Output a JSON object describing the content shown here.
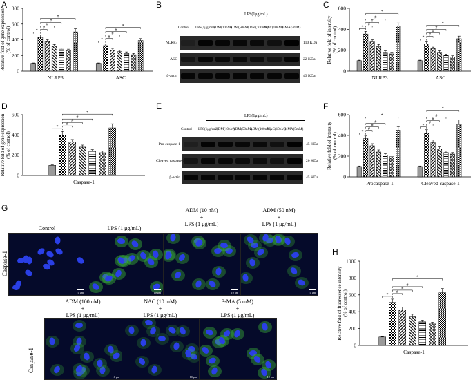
{
  "panels": {
    "A": "A",
    "B": "B",
    "C": "C",
    "D": "D",
    "E": "E",
    "F": "F",
    "G": "G",
    "H": "H"
  },
  "colors": {
    "bar_fill": "#d9d9d9",
    "bar_edge": "#000000",
    "nucleus": "#1a2fd6",
    "green": "#3fbf3a",
    "fluor_bg": "#050a2a"
  },
  "chart_data": [
    {
      "panel": "A",
      "type": "bar",
      "ylabel": "Relative fold of gene expression (% of control)",
      "ylim": [
        0,
        800
      ],
      "yticks": [
        0,
        200,
        400,
        600,
        800
      ],
      "categories": [
        "NLRP3",
        "ASC"
      ],
      "values": [
        [
          100,
          430,
          375,
          320,
          280,
          265,
          500
        ],
        [
          100,
          325,
          270,
          250,
          230,
          210,
          390
        ]
      ],
      "errors": [
        [
          5,
          30,
          25,
          20,
          15,
          15,
          40
        ],
        [
          5,
          20,
          20,
          15,
          15,
          15,
          25
        ]
      ],
      "sig_marks": [
        [
          "*",
          "#",
          "#",
          "#",
          "#"
        ],
        [
          "*",
          "#",
          "#",
          "#",
          "*"
        ]
      ]
    },
    {
      "panel": "C",
      "type": "bar",
      "ylabel": "Relative fold of intensity (% of control)",
      "ylim": [
        0,
        600
      ],
      "yticks": [
        0,
        200,
        400,
        600
      ],
      "categories": [
        "NLRP3",
        "ASC"
      ],
      "values": [
        [
          100,
          355,
          280,
          235,
          180,
          165,
          430
        ],
        [
          100,
          260,
          215,
          180,
          150,
          135,
          310
        ]
      ],
      "errors": [
        [
          5,
          25,
          20,
          20,
          15,
          15,
          30
        ],
        [
          5,
          20,
          15,
          15,
          12,
          12,
          25
        ]
      ],
      "sig_marks": [
        [
          "*",
          "#",
          "#",
          "#",
          "*"
        ],
        [
          "*",
          "#",
          "#",
          "#",
          "*"
        ]
      ]
    },
    {
      "panel": "D",
      "type": "bar",
      "ylabel": "Relative fold of gene expression (% of control)",
      "ylim": [
        0,
        600
      ],
      "yticks": [
        0,
        200,
        400,
        600
      ],
      "categories": [
        "Caspase-1"
      ],
      "values": [
        [
          100,
          400,
          330,
          280,
          240,
          225,
          470
        ]
      ],
      "errors": [
        [
          5,
          35,
          25,
          20,
          15,
          15,
          40
        ]
      ],
      "sig_marks": [
        [
          "*",
          "#",
          "#",
          "#",
          "*"
        ]
      ]
    },
    {
      "panel": "F",
      "type": "bar",
      "ylabel": "Relative fold of intensity (% of control)",
      "ylim": [
        0,
        600
      ],
      "yticks": [
        0,
        200,
        400,
        600
      ],
      "categories": [
        "Procaspase-1",
        "Cleaved caspase-1"
      ],
      "values": [
        [
          100,
          370,
          300,
          240,
          210,
          195,
          450
        ],
        [
          100,
          420,
          330,
          270,
          235,
          220,
          510
        ]
      ],
      "errors": [
        [
          5,
          25,
          20,
          20,
          15,
          15,
          35
        ],
        [
          5,
          35,
          25,
          20,
          15,
          15,
          40
        ]
      ],
      "sig_marks": [
        [
          "*",
          "#",
          "#",
          "#",
          "*"
        ],
        [
          "*",
          "#",
          "#",
          "#",
          "*"
        ]
      ]
    },
    {
      "panel": "H",
      "type": "bar",
      "ylabel": "Relative fold of fluorescence intensity (% of control)",
      "ylim": [
        0,
        1000
      ],
      "yticks": [
        0,
        200,
        400,
        600,
        800,
        1000
      ],
      "categories": [
        "Caspase-1"
      ],
      "values": [
        [
          100,
          510,
          420,
          340,
          280,
          255,
          625
        ]
      ],
      "errors": [
        [
          5,
          40,
          35,
          30,
          20,
          20,
          50
        ]
      ],
      "sig_marks": [
        [
          "*",
          "#",
          "#",
          "#",
          "*"
        ]
      ]
    }
  ],
  "blotB": {
    "header": "LPS(1μg/mL)",
    "conditions": [
      "Control",
      "LPS(1μg/mL)",
      "ADM(10nM)",
      "ADM(50nM)",
      "ADM(100nM)",
      "NAC(10nM)",
      "3-MA(5mM)"
    ],
    "rows": [
      {
        "label": "NLRP3",
        "size": "110 KDa"
      },
      {
        "label": "ASC",
        "size": "22 KDa"
      },
      {
        "label": "β-actin",
        "size": "43 KDa"
      }
    ]
  },
  "blotE": {
    "header": "LPS(1μg/mL)",
    "conditions": [
      "Control",
      "LPS(1μg/mL)",
      "ADM(10nM)",
      "ADM(50nM)",
      "ADM(100nM)",
      "NAC(10nM)",
      "3-MA(5mM)"
    ],
    "rows": [
      {
        "label": "Pro-caspase-1",
        "size": "45 KDa"
      },
      {
        "label": "Cleaved caspase-1",
        "size": "20 KDa"
      },
      {
        "label": "β-actin",
        "size": "45 KDa"
      }
    ]
  },
  "panelG": {
    "row_label": "Caspase-1",
    "top_captions": [
      "Control",
      "LPS (1 μg/mL)",
      "ADM (10 nM)\n+\nLPS (1 μg/mL)",
      "ADM (50 nM)\n+\nLPS (1 μg/mL)"
    ],
    "bottom_captions": [
      "ADM (100 nM)\n+\nLPS (1 μg/mL)",
      "NAC (10 mM)\n+\nLPS (1 μg/mL)",
      "3-MA (5 mM)\n+\nLPS (1 μg/mL)"
    ],
    "scale": "10 μm"
  }
}
